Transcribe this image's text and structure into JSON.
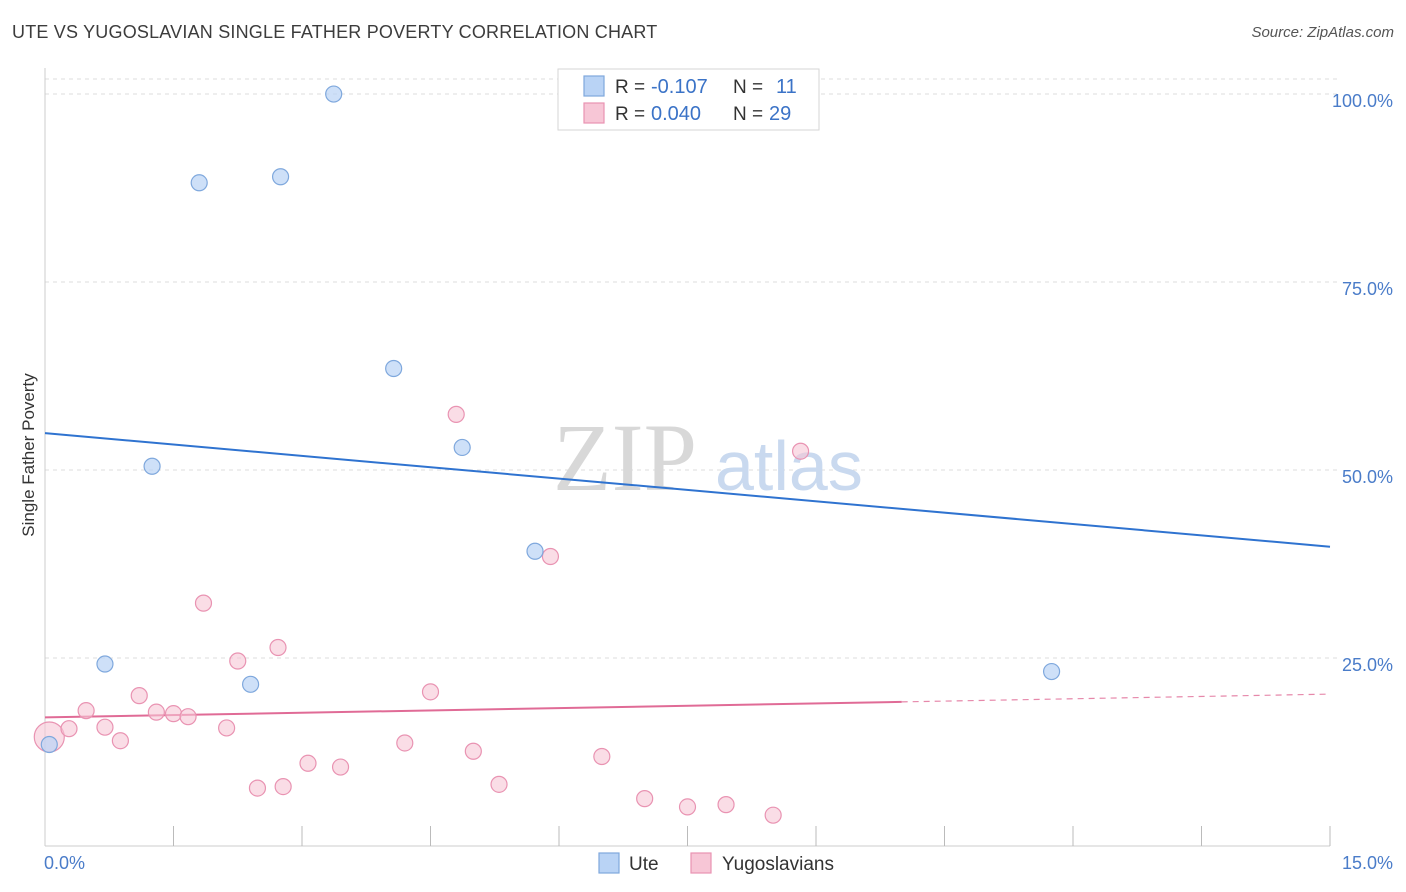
{
  "title": "UTE VS YUGOSLAVIAN SINGLE FATHER POVERTY CORRELATION CHART",
  "source": "Source: ZipAtlas.com",
  "watermark": {
    "zip": "ZIP",
    "atlas": "atlas"
  },
  "colors": {
    "ute_fill": "#b9d3f5",
    "ute_stroke": "#7fa8dd",
    "ute_line": "#2f73d0",
    "yugo_fill": "#f7c6d6",
    "yugo_stroke": "#e993b2",
    "yugo_line": "#e06b96",
    "tick_text": "#4a7cc9",
    "grid": "#dddddd"
  },
  "legend": {
    "rows": [
      {
        "r_label": "R =",
        "r_value": "-0.107",
        "n_label": "N =",
        "n_value": "11"
      },
      {
        "r_label": "R =",
        "r_value": "0.040",
        "n_label": "N =",
        "n_value": "29"
      }
    ]
  },
  "chart_data": {
    "type": "scatter",
    "ylabel": "Single Father Poverty",
    "xlim": [
      0,
      15
    ],
    "ylim": [
      0,
      102
    ],
    "x_tick_labels": [
      "0.0%",
      "15.0%"
    ],
    "y_ticks": [
      25,
      50,
      75,
      100
    ],
    "y_tick_labels": [
      "25.0%",
      "50.0%",
      "75.0%",
      "100.0%"
    ],
    "legend_placement": "top-center",
    "series": [
      {
        "name": "Ute",
        "points": [
          [
            0.05,
            13.5
          ],
          [
            0.7,
            24.2
          ],
          [
            1.25,
            50.5
          ],
          [
            1.8,
            88.2
          ],
          [
            2.4,
            21.5
          ],
          [
            2.75,
            89.0
          ],
          [
            3.37,
            100.0
          ],
          [
            4.07,
            63.5
          ],
          [
            4.87,
            53.0
          ],
          [
            5.72,
            39.2
          ],
          [
            11.75,
            23.2
          ]
        ],
        "trend": {
          "x": [
            0,
            15
          ],
          "y": [
            54.9,
            39.8
          ]
        }
      },
      {
        "name": "Yugoslavians",
        "points": [
          [
            0.05,
            14.5
          ],
          [
            0.28,
            15.6
          ],
          [
            0.48,
            18.0
          ],
          [
            0.7,
            15.8
          ],
          [
            0.88,
            14.0
          ],
          [
            1.1,
            20.0
          ],
          [
            1.3,
            17.8
          ],
          [
            1.5,
            17.6
          ],
          [
            1.67,
            17.2
          ],
          [
            1.85,
            32.3
          ],
          [
            2.12,
            15.7
          ],
          [
            2.25,
            24.6
          ],
          [
            2.48,
            7.7
          ],
          [
            2.72,
            26.4
          ],
          [
            2.78,
            7.9
          ],
          [
            3.07,
            11.0
          ],
          [
            3.45,
            10.5
          ],
          [
            4.2,
            13.7
          ],
          [
            4.5,
            20.5
          ],
          [
            4.8,
            57.4
          ],
          [
            5.0,
            12.6
          ],
          [
            5.3,
            8.2
          ],
          [
            5.9,
            38.5
          ],
          [
            6.5,
            11.9
          ],
          [
            7.0,
            6.3
          ],
          [
            7.5,
            5.2
          ],
          [
            7.95,
            5.5
          ],
          [
            8.5,
            4.1
          ],
          [
            8.82,
            52.5
          ]
        ],
        "trend": {
          "x": [
            0,
            15
          ],
          "y": [
            17.1,
            20.2
          ],
          "solid_until": 10
        }
      }
    ]
  }
}
